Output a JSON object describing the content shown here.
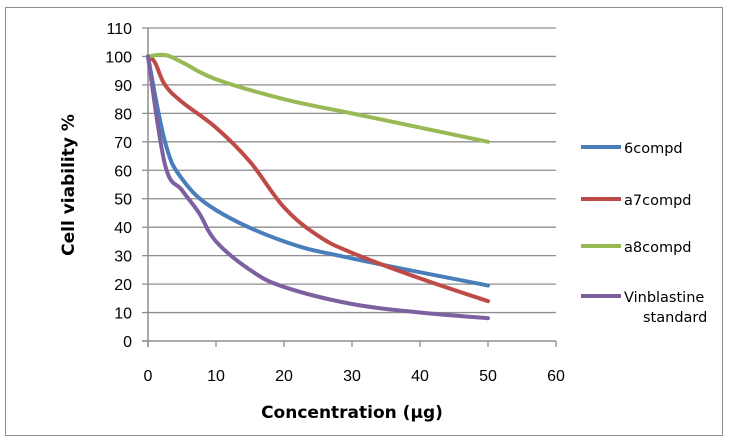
{
  "chart_data": {
    "type": "line",
    "title": "",
    "xlabel": "Concentration (μg)",
    "ylabel": "Cell viability %",
    "xlim": [
      0,
      60
    ],
    "ylim": [
      0,
      110
    ],
    "xticks": [
      0,
      10,
      20,
      30,
      40,
      50,
      60
    ],
    "yticks": [
      0,
      10,
      20,
      30,
      40,
      50,
      60,
      70,
      80,
      90,
      100,
      110
    ],
    "grid": "horizontal",
    "legend": "right",
    "smooth": true,
    "series": [
      {
        "name": "6compd",
        "color": "#4a7ebb",
        "x": [
          0,
          2.5,
          5,
          10,
          20,
          30,
          50
        ],
        "y": [
          100,
          70,
          57,
          46,
          35,
          29,
          19.5
        ]
      },
      {
        "name": "a7compd",
        "color": "#be4b48",
        "x": [
          0,
          1,
          2.5,
          5,
          10,
          15,
          20,
          25,
          30,
          40,
          50
        ],
        "y": [
          100,
          98,
          90,
          84,
          75,
          63,
          47,
          37,
          31,
          22,
          14
        ]
      },
      {
        "name": "a8compd",
        "color": "#98b954",
        "x": [
          0,
          2.5,
          5,
          10,
          20,
          30,
          40,
          50
        ],
        "y": [
          100,
          100.5,
          98,
          92,
          85,
          80,
          75,
          70
        ]
      },
      {
        "name": "Vinblastine standard",
        "legend_lines": [
          "Vinblastine",
          "standard"
        ],
        "color": "#7d60a0",
        "x": [
          0,
          2.5,
          5,
          7.5,
          10,
          15,
          20,
          30,
          40,
          50
        ],
        "y": [
          100,
          62,
          53,
          45,
          35,
          25,
          19,
          13,
          10,
          8
        ]
      }
    ]
  }
}
